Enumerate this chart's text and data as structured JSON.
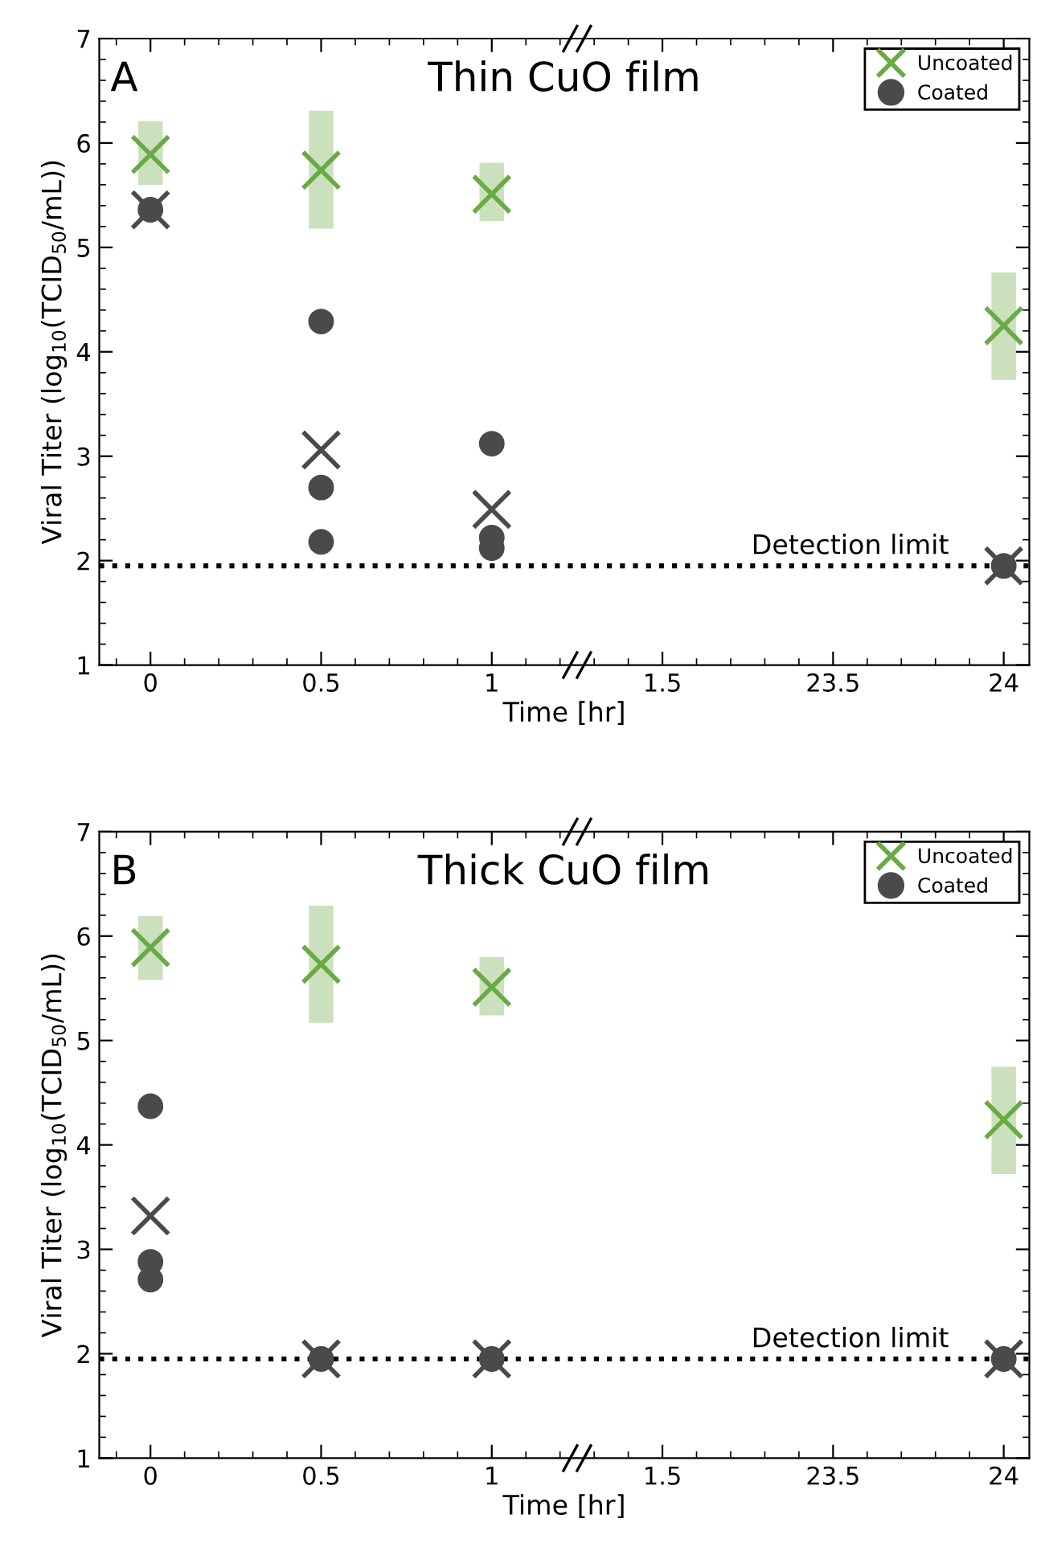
{
  "chart_data": [
    {
      "type": "scatter",
      "title": "Thin CuO film",
      "xlabel": "Time [hr]",
      "ylabel": "Viral Titer (log$_{10}$(TCID$_{50}$/mL))",
      "annotations": [
        "A"
      ],
      "categories": [
        "0",
        "0.5",
        "1",
        "1.5",
        "23.5",
        "24"
      ],
      "ylim": [
        1,
        7
      ],
      "yticks": [
        1,
        2,
        3,
        4,
        5,
        6,
        7
      ],
      "grid": false,
      "legend": "top right",
      "series": [
        {
          "name": "Uncoated",
          "color": "#6aaa45",
          "marker": "cross",
          "x": [
            "0",
            "0.5",
            "1",
            "24"
          ],
          "values": [
            5.89,
            5.74,
            5.51,
            4.25
          ],
          "errors": [
            [
              5.6,
              6.21
            ],
            [
              5.18,
              6.31
            ],
            [
              5.25,
              5.81
            ],
            [
              3.73,
              4.76
            ]
          ]
        },
        {
          "name": "Coated",
          "color": "#4a4a4a",
          "marker": "circle",
          "x": [
            "0",
            "0.5",
            "0.5",
            "0.5",
            "1",
            "1",
            "1",
            "24"
          ],
          "values": [
            5.36,
            4.29,
            2.7,
            2.18,
            3.12,
            2.22,
            2.12,
            1.95
          ]
        },
        {
          "color": "#4a4a4a",
          "marker": "cross",
          "x": [
            "0",
            "0.5",
            "1",
            "24"
          ],
          "values": [
            5.36,
            3.06,
            2.49,
            1.95
          ]
        }
      ],
      "ref_lines": [
        {
          "axis": "y",
          "value": 1.95,
          "label": "Detection limit",
          "color": "#000000",
          "line_style": "dotted"
        }
      ]
    },
    {
      "type": "scatter",
      "title": "Thick CuO film",
      "xlabel": "Time [hr]",
      "ylabel": "Viral Titer (log$_{10}$(TCID$_{50}$/mL))",
      "annotations": [
        "B"
      ],
      "categories": [
        "0",
        "0.5",
        "1",
        "1.5",
        "23.5",
        "24"
      ],
      "ylim": [
        1,
        7
      ],
      "yticks": [
        1,
        2,
        3,
        4,
        5,
        6,
        7
      ],
      "grid": false,
      "legend": "top right",
      "series": [
        {
          "name": "Uncoated",
          "color": "#6aaa45",
          "marker": "cross",
          "x": [
            "0",
            "0.5",
            "1",
            "24"
          ],
          "values": [
            5.89,
            5.73,
            5.51,
            4.24
          ],
          "errors": [
            [
              5.58,
              6.19
            ],
            [
              5.17,
              6.29
            ],
            [
              5.24,
              5.8
            ],
            [
              3.72,
              4.75
            ]
          ]
        },
        {
          "name": "Coated",
          "color": "#4a4a4a",
          "marker": "circle",
          "x": [
            "0",
            "0",
            "0",
            "0.5",
            "1",
            "24"
          ],
          "values": [
            4.37,
            2.88,
            2.71,
            1.95,
            1.95,
            1.95
          ]
        },
        {
          "color": "#4a4a4a",
          "marker": "cross",
          "x": [
            "0",
            "0.5",
            "1",
            "24"
          ],
          "values": [
            3.32,
            1.95,
            1.95,
            1.95
          ]
        }
      ],
      "ref_lines": [
        {
          "axis": "y",
          "value": 1.95,
          "label": "Detection limit",
          "color": "#000000",
          "line_style": "dotted"
        }
      ]
    }
  ]
}
